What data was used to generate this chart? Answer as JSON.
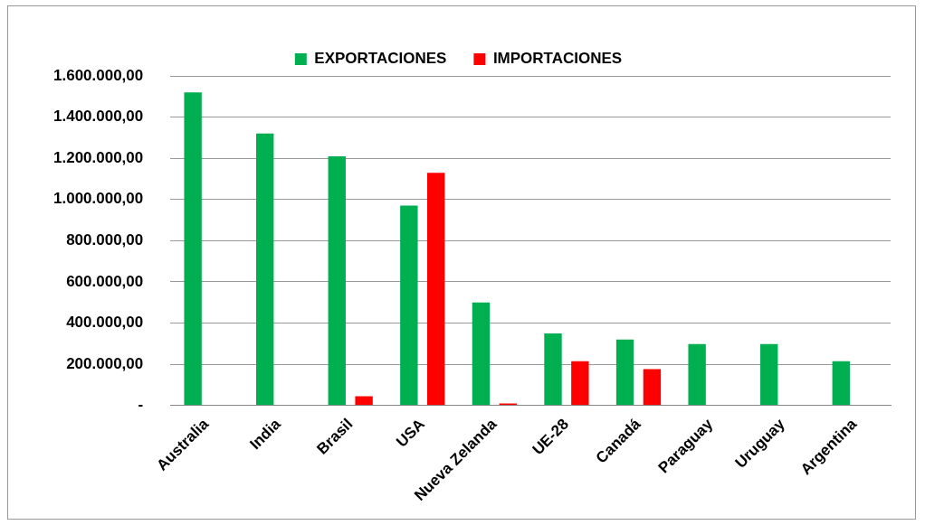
{
  "chart_data": {
    "type": "bar",
    "categories": [
      "Australia",
      "India",
      "Brasil",
      "USA",
      "Nueva Zelanda",
      "UE-28",
      "Canadá",
      "Paraguay",
      "Uruguay",
      "Argentina"
    ],
    "series": [
      {
        "name": "EXPORTACIONES",
        "color": "#00b050",
        "values": [
          1520000,
          1320000,
          1210000,
          970000,
          500000,
          350000,
          320000,
          298000,
          298000,
          215000
        ]
      },
      {
        "name": "IMPORTACIONES",
        "color": "#ff0000",
        "values": [
          null,
          null,
          45000,
          1130000,
          10000,
          215000,
          177000,
          null,
          null,
          null
        ]
      }
    ],
    "ylim": [
      0,
      1600000
    ],
    "yticks": [
      {
        "value": 0,
        "label": "-"
      },
      {
        "value": 200000,
        "label": "200.000,00"
      },
      {
        "value": 400000,
        "label": "400.000,00"
      },
      {
        "value": 600000,
        "label": "600.000,00"
      },
      {
        "value": 800000,
        "label": "800.000,00"
      },
      {
        "value": 1000000,
        "label": "1.000.000,00"
      },
      {
        "value": 1200000,
        "label": "1.200.000,00"
      },
      {
        "value": 1400000,
        "label": "1.400.000,00"
      },
      {
        "value": 1600000,
        "label": "1.600.000,00"
      }
    ],
    "grid": "y",
    "legend": "top"
  }
}
